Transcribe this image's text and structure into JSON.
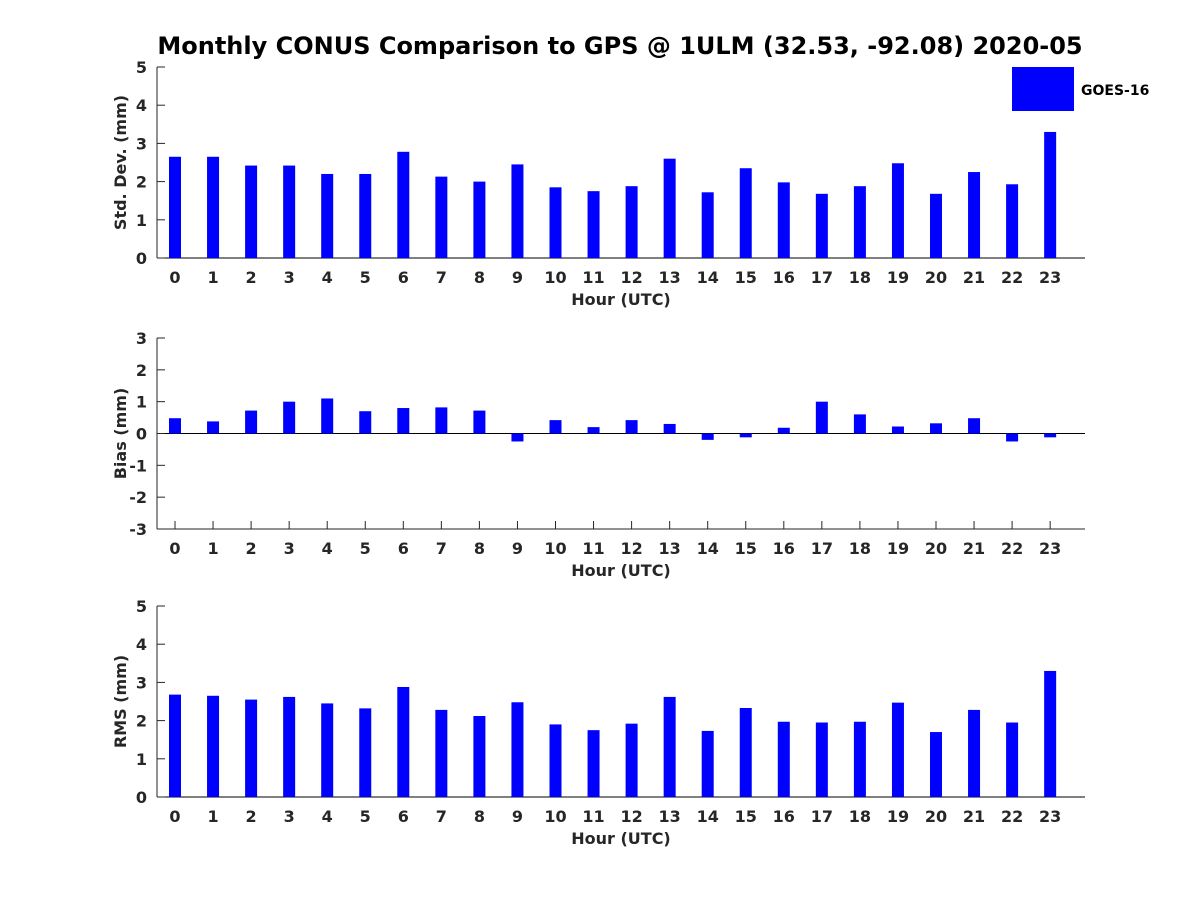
{
  "chart_data": {
    "type": "bar",
    "title": "Monthly CONUS Comparison to GPS @ 1ULM (32.53, -92.08) 2020-05",
    "legend": {
      "label": "GOES-16",
      "placement": "top-right",
      "color": "#0000ff"
    },
    "bar_color": "#0000ff",
    "categories": [
      "0",
      "1",
      "2",
      "3",
      "4",
      "5",
      "6",
      "7",
      "8",
      "9",
      "10",
      "11",
      "12",
      "13",
      "14",
      "15",
      "16",
      "17",
      "18",
      "19",
      "20",
      "21",
      "22",
      "23"
    ],
    "panels": [
      {
        "id": "std",
        "xlabel": "Hour (UTC)",
        "ylabel": "Std. Dev. (mm)",
        "ylim": [
          0,
          5
        ],
        "yticks": [
          "0",
          "1",
          "2",
          "3",
          "4",
          "5"
        ],
        "series": [
          {
            "name": "GOES-16",
            "values": [
              2.65,
              2.65,
              2.42,
              2.42,
              2.2,
              2.2,
              2.78,
              2.13,
              2.0,
              2.45,
              1.85,
              1.75,
              1.88,
              2.6,
              1.72,
              2.35,
              1.98,
              1.68,
              1.88,
              2.48,
              1.68,
              2.25,
              1.93,
              3.3
            ]
          }
        ]
      },
      {
        "id": "bias",
        "xlabel": "Hour (UTC)",
        "ylabel": "Bias (mm)",
        "ylim": [
          -3,
          3
        ],
        "yticks": [
          "-3",
          "-2",
          "-1",
          "0",
          "1",
          "2",
          "3"
        ],
        "series": [
          {
            "name": "GOES-16",
            "values": [
              0.48,
              0.38,
              0.72,
              1.0,
              1.1,
              0.7,
              0.8,
              0.82,
              0.72,
              -0.25,
              0.42,
              0.2,
              0.42,
              0.3,
              -0.2,
              -0.12,
              0.18,
              1.0,
              0.6,
              0.22,
              0.32,
              0.48,
              -0.25,
              -0.12
            ]
          }
        ]
      },
      {
        "id": "rms",
        "xlabel": "Hour (UTC)",
        "ylabel": "RMS (mm)",
        "ylim": [
          0,
          5
        ],
        "yticks": [
          "0",
          "1",
          "2",
          "3",
          "4",
          "5"
        ],
        "series": [
          {
            "name": "GOES-16",
            "values": [
              2.68,
              2.65,
              2.55,
              2.62,
              2.45,
              2.32,
              2.88,
              2.28,
              2.12,
              2.48,
              1.9,
              1.75,
              1.92,
              2.62,
              1.73,
              2.33,
              1.97,
              1.95,
              1.97,
              2.47,
              1.7,
              2.28,
              1.95,
              3.3
            ]
          }
        ]
      }
    ]
  }
}
